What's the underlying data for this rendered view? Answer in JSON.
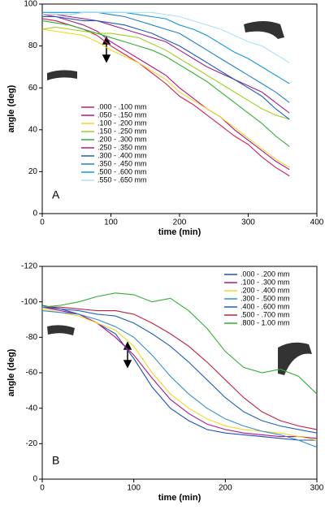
{
  "chart_data": [
    {
      "type": "line",
      "label": "A",
      "xlabel": "time (min)",
      "ylabel": "angle (deg)",
      "x": [
        0,
        20,
        40,
        60,
        80,
        100,
        120,
        140,
        160,
        180,
        200,
        220,
        240,
        260,
        280,
        300,
        320,
        340,
        360
      ],
      "xlim": [
        0,
        400
      ],
      "xticks": [
        0,
        100,
        200,
        300,
        400
      ],
      "ylim": [
        0,
        100
      ],
      "yticks": [
        0,
        20,
        40,
        60,
        80,
        100
      ],
      "legend": "center-left",
      "series": [
        {
          "name": ".000 - .100 mm",
          "color": "#d01c5c",
          "values": [
            93,
            92,
            90,
            88,
            85,
            80,
            76,
            72,
            67,
            62,
            56,
            52,
            47,
            42,
            37,
            33,
            27,
            22,
            18
          ]
        },
        {
          "name": ".050 - .150 mm",
          "color": "#b0148c",
          "values": [
            95,
            94,
            92,
            90,
            87,
            82,
            78,
            74,
            70,
            66,
            60,
            55,
            50,
            46,
            40,
            35,
            30,
            25,
            21
          ]
        },
        {
          "name": ".100 - .200 mm",
          "color": "#f0d820",
          "values": [
            88,
            87,
            86,
            85,
            82,
            78,
            75,
            72,
            68,
            64,
            58,
            54,
            50,
            46,
            41,
            36,
            31,
            26,
            22
          ]
        },
        {
          "name": ".150 - .250 mm",
          "color": "#a0d020",
          "values": [
            88,
            89,
            88,
            87,
            86,
            86,
            85,
            84,
            81,
            78,
            74,
            70,
            66,
            62,
            58,
            54,
            50,
            47,
            45
          ]
        },
        {
          "name": ".200 - .300 mm",
          "color": "#30b030",
          "values": [
            92,
            91,
            90,
            88,
            86,
            84,
            82,
            80,
            78,
            75,
            71,
            67,
            63,
            58,
            53,
            48,
            43,
            37,
            32
          ]
        },
        {
          "name": ".250 - .350 mm",
          "color": "#a02090",
          "values": [
            95,
            95,
            94,
            93,
            92,
            90,
            88,
            86,
            84,
            82,
            78,
            74,
            70,
            67,
            64,
            61,
            58,
            53,
            48
          ]
        },
        {
          "name": ".300 - .400 mm",
          "color": "#1a5cc0",
          "values": [
            94,
            94,
            93,
            92,
            92,
            91,
            90,
            88,
            86,
            83,
            80,
            76,
            72,
            68,
            64,
            60,
            56,
            50,
            45
          ]
        },
        {
          "name": ".350 - .450 mm",
          "color": "#2080d0",
          "values": [
            95,
            95,
            95,
            96,
            96,
            95,
            94,
            92,
            90,
            88,
            86,
            82,
            78,
            74,
            70,
            66,
            62,
            58,
            53
          ]
        },
        {
          "name": ".500 - .600 mm",
          "color": "#1098e0",
          "values": [
            96,
            96,
            96,
            96,
            96,
            96,
            96,
            95,
            94,
            93,
            90,
            88,
            85,
            81,
            77,
            74,
            70,
            66,
            62
          ]
        },
        {
          "name": ".550 - .650 mm",
          "color": "#a8e4f4",
          "values": [
            95,
            95,
            95,
            96,
            96,
            96,
            96,
            96,
            96,
            95,
            94,
            92,
            90,
            88,
            85,
            82,
            80,
            76,
            72
          ]
        }
      ]
    },
    {
      "type": "line",
      "label": "B",
      "xlabel": "time (min)",
      "ylabel": "angle (deg)",
      "x": [
        0,
        20,
        40,
        60,
        80,
        100,
        120,
        140,
        160,
        180,
        200,
        220,
        240,
        260,
        280,
        300
      ],
      "xlim": [
        0,
        300
      ],
      "xticks": [
        0,
        100,
        200,
        300
      ],
      "ylim": [
        0,
        -120
      ],
      "yticks": [
        0,
        -20,
        -40,
        -60,
        -80,
        -100,
        -120
      ],
      "legend": "upper-right",
      "series": [
        {
          "name": ".000 - .200 mm",
          "color": "#1a50c0",
          "values": [
            -98,
            -96,
            -93,
            -88,
            -82,
            -68,
            -52,
            -40,
            -33,
            -28,
            -26,
            -25,
            -24,
            -23,
            -22,
            -22
          ]
        },
        {
          "name": ".100 - .300 mm",
          "color": "#b0148c",
          "values": [
            -97,
            -95,
            -93,
            -88,
            -80,
            -70,
            -57,
            -45,
            -37,
            -31,
            -28,
            -26,
            -25,
            -24,
            -24,
            -23
          ]
        },
        {
          "name": ".200 - .400 mm",
          "color": "#f0d820",
          "values": [
            -96,
            -94,
            -92,
            -88,
            -84,
            -75,
            -60,
            -48,
            -40,
            -34,
            -30,
            -28,
            -27,
            -26,
            -24,
            -22
          ]
        },
        {
          "name": ".300 - .500 mm",
          "color": "#3090d8",
          "values": [
            -95,
            -94,
            -93,
            -90,
            -86,
            -80,
            -70,
            -58,
            -48,
            -40,
            -34,
            -30,
            -27,
            -25,
            -22,
            -18
          ]
        },
        {
          "name": ".400 - .600 mm",
          "color": "#1a60c0",
          "values": [
            -97,
            -96,
            -95,
            -93,
            -92,
            -88,
            -82,
            -75,
            -66,
            -56,
            -46,
            -38,
            -33,
            -30,
            -28,
            -26
          ]
        },
        {
          "name": ".500 - .700 mm",
          "color": "#c02040",
          "values": [
            -97,
            -97,
            -96,
            -95,
            -95,
            -93,
            -88,
            -82,
            -75,
            -66,
            -56,
            -46,
            -38,
            -33,
            -30,
            -28
          ]
        },
        {
          "name": ".800 - 1.00 mm",
          "color": "#30b030",
          "values": [
            -97,
            -98,
            -100,
            -103,
            -105,
            -104,
            -100,
            -102,
            -95,
            -85,
            -72,
            -63,
            -60,
            -62,
            -58,
            -48
          ]
        }
      ]
    }
  ]
}
